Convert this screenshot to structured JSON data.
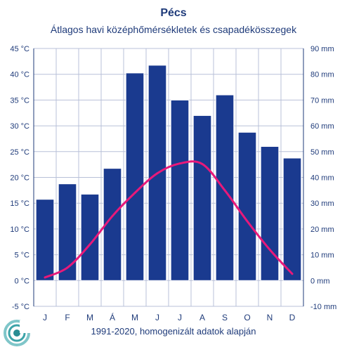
{
  "title": "Pécs",
  "subtitle": "Átlagos havi középhőmérsékletek  és csapadékösszegek",
  "footer": "1991-2020, homogenizált adatok alapján",
  "colors": {
    "bar": "#1a3a8f",
    "line": "#e8197a",
    "text": "#1f3b7a",
    "grid": "#b8c0d8"
  },
  "chart_data": {
    "type": "bar",
    "categories": [
      "J",
      "F",
      "M",
      "Á",
      "M",
      "J",
      "J",
      "A",
      "S",
      "O",
      "N",
      "D"
    ],
    "left_axis": {
      "unit": "°C",
      "ylim": [
        -5,
        45
      ],
      "ticks": [
        "-5 °C",
        "0 °C",
        "5 °C",
        "10 °C",
        "15 °C",
        "20 °C",
        "25 °C",
        "30 °C",
        "35 °C",
        "40 °C",
        "45 °C"
      ]
    },
    "right_axis": {
      "unit": "mm",
      "ylim": [
        -10,
        90
      ],
      "ticks": [
        "-10 mm",
        "0 mm",
        "10 mm",
        "20 mm",
        "30 mm",
        "40 mm",
        "50 mm",
        "60 mm",
        "70 mm",
        "80 mm",
        "90 mm"
      ]
    },
    "series": [
      {
        "type": "bar",
        "axis": "right",
        "values": [
          31.5,
          37.5,
          33.5,
          43.5,
          80.5,
          83.5,
          70,
          64,
          72,
          57.5,
          52,
          47.5
        ]
      },
      {
        "type": "line",
        "axis": "left",
        "values": [
          0.6,
          2.5,
          7.0,
          12.5,
          17.0,
          20.8,
          22.7,
          22.6,
          17.5,
          11.5,
          6.0,
          1.3
        ]
      }
    ],
    "grid": true
  }
}
